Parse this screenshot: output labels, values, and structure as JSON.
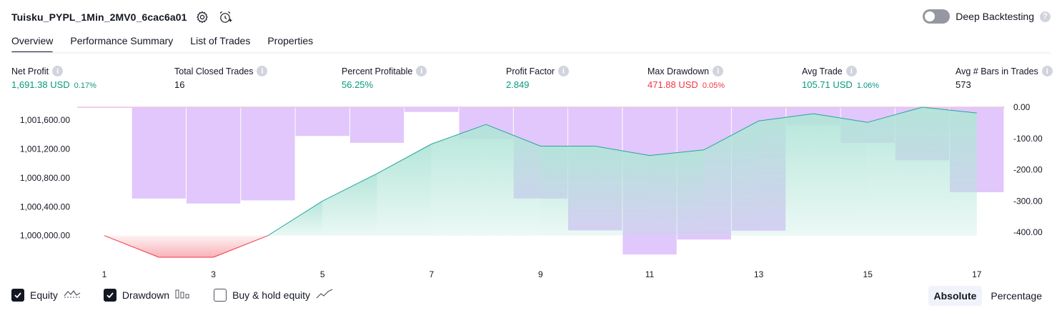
{
  "header": {
    "title": "Tuisku_PYPL_1Min_2MV0_6cac6a01",
    "settings_icon": "gear-icon",
    "alert_icon": "alarm-clock-plus-icon"
  },
  "deep_backtesting": {
    "label": "Deep Backtesting",
    "enabled": false,
    "help": "?"
  },
  "tabs": [
    {
      "label": "Overview",
      "active": true
    },
    {
      "label": "Performance Summary",
      "active": false
    },
    {
      "label": "List of Trades",
      "active": false
    },
    {
      "label": "Properties",
      "active": false
    }
  ],
  "metrics": [
    {
      "label": "Net Profit",
      "value": "1,691.38 USD",
      "pct": "0.17%",
      "tone": "pos"
    },
    {
      "label": "Total Closed Trades",
      "value": "16",
      "pct": "",
      "tone": "neu"
    },
    {
      "label": "Percent Profitable",
      "value": "56.25%",
      "pct": "",
      "tone": "pos"
    },
    {
      "label": "Profit Factor",
      "value": "2.849",
      "pct": "",
      "tone": "pos"
    },
    {
      "label": "Max Drawdown",
      "value": "471.88 USD",
      "pct": "0.05%",
      "tone": "neg"
    },
    {
      "label": "Avg Trade",
      "value": "105.71 USD",
      "pct": "1.06%",
      "tone": "pos"
    },
    {
      "label": "Avg # Bars in Trades",
      "value": "573",
      "pct": "",
      "tone": "neu"
    }
  ],
  "colors": {
    "equity_line": "#26a69a",
    "equity_fill": "#b2e5d8",
    "equity_negative_line": "#f23645",
    "equity_negative_fill": "#f7a9b0",
    "drawdown_bar": "#dfc4fb"
  },
  "chart_data": {
    "type": "line",
    "x_ticks": [
      "1",
      "3",
      "5",
      "7",
      "9",
      "11",
      "13",
      "15",
      "17"
    ],
    "x": [
      1,
      2,
      3,
      4,
      5,
      6,
      7,
      8,
      9,
      10,
      11,
      12,
      13,
      14,
      15,
      16,
      17
    ],
    "left_axis": {
      "ticks": [
        "1,000,000.00",
        "1,000,400.00",
        "1,000,800.00",
        "1,001,200.00",
        "1,001,600.00"
      ],
      "range": [
        999700,
        1001780
      ]
    },
    "right_axis": {
      "ticks": [
        "0.00",
        "-100.00",
        "-200.00",
        "-300.00",
        "-400.00"
      ],
      "range": [
        -480,
        0
      ]
    },
    "series": [
      {
        "kind": "equity",
        "values": [
          1000000,
          999700,
          999700,
          1000000,
          1000480,
          1000860,
          1001270,
          1001540,
          1001240,
          1001240,
          1001110,
          1001190,
          1001590,
          1001690,
          1001570,
          1001780,
          1001700
        ]
      },
      {
        "kind": "drawdown",
        "values": [
          -2,
          -292,
          -308,
          -298,
          -92,
          -114,
          -15,
          -102,
          -292,
          -394,
          -471,
          -423,
          -395,
          -58,
          -114,
          -170,
          -272
        ]
      }
    ]
  },
  "legend": [
    {
      "label": "Equity",
      "checked": true,
      "icon": "equity-line-icon"
    },
    {
      "label": "Drawdown",
      "checked": true,
      "icon": "drawdown-bars-icon"
    },
    {
      "label": "Buy & hold equity",
      "checked": false,
      "icon": "buy-hold-line-icon"
    }
  ],
  "mode": {
    "absolute": "Absolute",
    "percentage": "Percentage",
    "selected": "Absolute"
  }
}
